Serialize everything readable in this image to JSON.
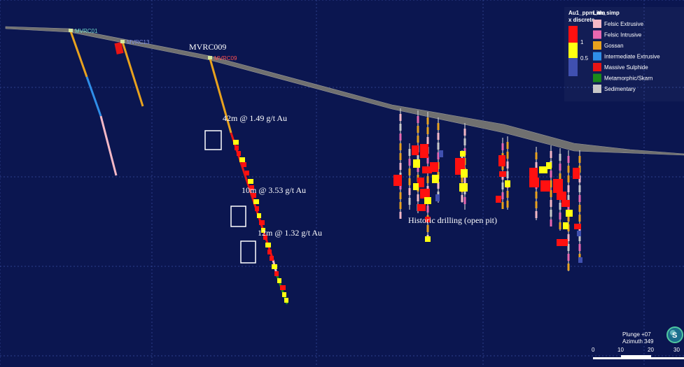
{
  "colors": {
    "background": "#0b1650",
    "grid": "#3a4ea0",
    "topography": "#707070",
    "felsic_extrusive": "#f4b8c6",
    "felsic_intrusive": "#e868b0",
    "gossan": "#e8a21e",
    "intermediate_extrusive": "#2f8ee8",
    "massive_sulphide": "#e81414",
    "metamorphic_skarn": "#1a8a1a",
    "sedimentary": "#c8c8c8",
    "au_high": "#ff1010",
    "au_mid": "#ffff10",
    "au_low": "#4050b0"
  },
  "holes": [
    {
      "name": "MVRC01",
      "label_color": "#6fd8c8"
    },
    {
      "name": "MVRC13",
      "label_color": "#7f8fe0"
    },
    {
      "name": "MVRC09",
      "label_color": "#ff5050"
    }
  ],
  "section_title": "MVRC009",
  "intercepts": [
    {
      "text": "42m @ 1.49 g/t Au"
    },
    {
      "text": "10m @ 3.53 g/t Au"
    },
    {
      "text": "12m @ 1.32 g/t Au"
    }
  ],
  "historic_label": "Historic drilling (open pit)",
  "legend": {
    "au_header_line1": "Au1_ppm_ma",
    "au_header_line2": "x discrete",
    "au_ticks": [
      "1",
      "0.5"
    ],
    "lith_header": "Lith_simp",
    "lith_items": [
      {
        "label": "Felsic Extrusive",
        "icon": "felsic-extrusive-swatch"
      },
      {
        "label": "Felsic Intrusive",
        "icon": "felsic-intrusive-swatch"
      },
      {
        "label": "Gossan",
        "icon": "gossan-swatch"
      },
      {
        "label": "Intermediate Extrusive",
        "icon": "intermediate-extrusive-swatch"
      },
      {
        "label": "Massive Sulphide",
        "icon": "massive-sulphide-swatch"
      },
      {
        "label": "Metamorphic/Skarn",
        "icon": "metamorphic-skarn-swatch"
      },
      {
        "label": "Sedimentary",
        "icon": "sedimentary-swatch"
      }
    ]
  },
  "view": {
    "plunge": "Plunge +07",
    "azimuth": "Azimuth 349",
    "compass_letter": "S",
    "scale_ticks": [
      "0",
      "10",
      "20",
      "30"
    ]
  }
}
